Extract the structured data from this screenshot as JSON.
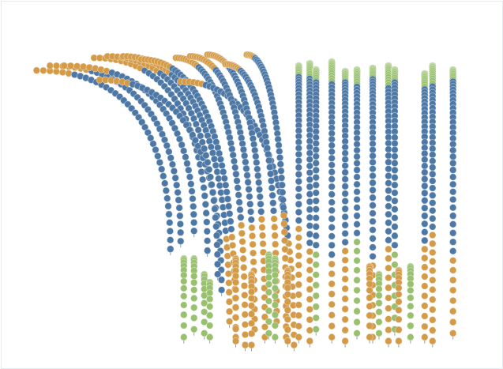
{
  "chart_data": {
    "type": "strands",
    "tick_labels": false,
    "xlim": [
      0,
      637
    ],
    "ylim": [
      0,
      467
    ],
    "strands": [
      {
        "tip": [
          45,
          379
        ],
        "base": [
          215,
          152
        ],
        "colors": [
          "#d39a47",
          "#4d78a6"
        ],
        "counts": [
          6,
          34
        ]
      },
      {
        "tip": [
          62,
          385
        ],
        "base": [
          228,
          162
        ],
        "colors": [
          "#d39a47",
          "#4d78a6"
        ],
        "counts": [
          7,
          34
        ]
      },
      {
        "tip": [
          80,
          385
        ],
        "base": [
          245,
          175
        ],
        "colors": [
          "#d39a47",
          "#4d78a6"
        ],
        "counts": [
          8,
          32
        ]
      },
      {
        "tip": [
          118,
          395
        ],
        "base": [
          262,
          150
        ],
        "colors": [
          "#d39a47",
          "#4d78a6"
        ],
        "counts": [
          10,
          30
        ]
      },
      {
        "tip": [
          125,
          367
        ],
        "base": [
          280,
          100
        ],
        "colors": [
          "#d39a47",
          "#4d78a6"
        ],
        "counts": [
          6,
          36
        ]
      },
      {
        "tip": [
          135,
          397
        ],
        "base": [
          275,
          120
        ],
        "colors": [
          "#d39a47",
          "#4d78a6"
        ],
        "counts": [
          12,
          32
        ]
      },
      {
        "tip": [
          155,
          397
        ],
        "base": [
          290,
          60
        ],
        "colors": [
          "#d39a47",
          "#4d78a6",
          "#d39a47"
        ],
        "counts": [
          14,
          30,
          10
        ]
      },
      {
        "tip": [
          178,
          393
        ],
        "base": [
          298,
          40
        ],
        "colors": [
          "#d39a47",
          "#4d78a6",
          "#d39a47"
        ],
        "counts": [
          10,
          34,
          12
        ]
      },
      {
        "tip": [
          222,
          395
        ],
        "base": [
          310,
          30
        ],
        "colors": [
          "#d39a47",
          "#4d78a6",
          "#d39a47"
        ],
        "counts": [
          10,
          32,
          14
        ]
      },
      {
        "tip": [
          228,
          365
        ],
        "base": [
          372,
          30
        ],
        "colors": [
          "#d39a47",
          "#4d78a6",
          "#d39a47"
        ],
        "counts": [
          6,
          34,
          12
        ]
      },
      {
        "tip": [
          240,
          397
        ],
        "base": [
          322,
          50
        ],
        "colors": [
          "#d39a47",
          "#4d78a6",
          "#d39a47"
        ],
        "counts": [
          12,
          30,
          12
        ]
      },
      {
        "tip": [
          262,
          399
        ],
        "base": [
          335,
          40
        ],
        "colors": [
          "#d39a47",
          "#4d78a6",
          "#d39a47"
        ],
        "counts": [
          12,
          30,
          14
        ]
      },
      {
        "tip": [
          285,
          387
        ],
        "base": [
          350,
          60
        ],
        "colors": [
          "#d39a47",
          "#4d78a6",
          "#d39a47"
        ],
        "counts": [
          8,
          30,
          12
        ]
      },
      {
        "tip": [
          312,
          399
        ],
        "base": [
          362,
          40
        ],
        "colors": [
          "#d39a47",
          "#4d78a6",
          "#d39a47"
        ],
        "counts": [
          6,
          34,
          14
        ]
      },
      {
        "tip": [
          378,
          385
        ],
        "base": [
          378,
          40
        ],
        "colors": [
          "#98c06e",
          "#4d78a6",
          "#d39a47"
        ],
        "counts": [
          10,
          28,
          12
        ]
      },
      {
        "tip": [
          392,
          388
        ],
        "base": [
          392,
          35
        ],
        "colors": [
          "#98c06e",
          "#4d78a6",
          "#d39a47"
        ],
        "counts": [
          12,
          30,
          10
        ]
      },
      {
        "tip": [
          400,
          380
        ],
        "base": [
          400,
          50
        ],
        "colors": [
          "#98c06e",
          "#4d78a6",
          "#98c06e"
        ],
        "counts": [
          10,
          28,
          8
        ]
      },
      {
        "tip": [
          420,
          390
        ],
        "base": [
          420,
          40
        ],
        "colors": [
          "#98c06e",
          "#4d78a6",
          "#d39a47"
        ],
        "counts": [
          14,
          28,
          8
        ]
      },
      {
        "tip": [
          437,
          378
        ],
        "base": [
          437,
          35
        ],
        "colors": [
          "#98c06e",
          "#4d78a6",
          "#d39a47"
        ],
        "counts": [
          10,
          30,
          10
        ]
      },
      {
        "tip": [
          452,
          380
        ],
        "base": [
          452,
          45
        ],
        "colors": [
          "#98c06e",
          "#4d78a6",
          "#98c06e"
        ],
        "counts": [
          12,
          26,
          10
        ]
      },
      {
        "tip": [
          472,
          382
        ],
        "base": [
          472,
          40
        ],
        "colors": [
          "#98c06e",
          "#4d78a6",
          "#d39a47"
        ],
        "counts": [
          10,
          32,
          8
        ]
      },
      {
        "tip": [
          492,
          385
        ],
        "base": [
          492,
          35
        ],
        "colors": [
          "#98c06e",
          "#4d78a6",
          "#d39a47"
        ],
        "counts": [
          14,
          26,
          10
        ]
      },
      {
        "tip": [
          500,
          380
        ],
        "base": [
          500,
          50
        ],
        "colors": [
          "#98c06e",
          "#4d78a6",
          "#98c06e"
        ],
        "counts": [
          10,
          28,
          8
        ]
      },
      {
        "tip": [
          538,
          375
        ],
        "base": [
          538,
          40
        ],
        "colors": [
          "#98c06e",
          "#4d78a6",
          "#d39a47"
        ],
        "counts": [
          12,
          28,
          10
        ]
      },
      {
        "tip": [
          548,
          385
        ],
        "base": [
          548,
          35
        ],
        "colors": [
          "#98c06e",
          "#4d78a6",
          "#d39a47"
        ],
        "counts": [
          14,
          26,
          12
        ]
      },
      {
        "tip": [
          574,
          380
        ],
        "base": [
          574,
          45
        ],
        "colors": [
          "#98c06e",
          "#4d78a6",
          "#d39a47"
        ],
        "counts": [
          10,
          30,
          8
        ]
      },
      {
        "tip": [
          232,
          140
        ],
        "base": [
          232,
          40
        ],
        "colors": [
          "#98c06e"
        ],
        "counts": [
          14
        ]
      },
      {
        "tip": [
          245,
          140
        ],
        "base": [
          245,
          50
        ],
        "colors": [
          "#98c06e"
        ],
        "counts": [
          13
        ]
      },
      {
        "tip": [
          258,
          120
        ],
        "base": [
          258,
          45
        ],
        "colors": [
          "#98c06e"
        ],
        "counts": [
          11
        ]
      },
      {
        "tip": [
          265,
          110
        ],
        "base": [
          265,
          40
        ],
        "colors": [
          "#98c06e"
        ],
        "counts": [
          10
        ]
      },
      {
        "tip": [
          298,
          140
        ],
        "base": [
          298,
          35
        ],
        "colors": [
          "#d39a47"
        ],
        "counts": [
          14
        ]
      },
      {
        "tip": [
          318,
          120
        ],
        "base": [
          318,
          30
        ],
        "colors": [
          "#d39a47"
        ],
        "counts": [
          13
        ]
      },
      {
        "tip": [
          340,
          145
        ],
        "base": [
          340,
          45
        ],
        "colors": [
          "#98c06e"
        ],
        "counts": [
          14
        ]
      },
      {
        "tip": [
          348,
          140
        ],
        "base": [
          348,
          40
        ],
        "colors": [
          "#98c06e"
        ],
        "counts": [
          14
        ]
      },
      {
        "tip": [
          364,
          125
        ],
        "base": [
          364,
          35
        ],
        "colors": [
          "#d39a47"
        ],
        "counts": [
          13
        ]
      },
      {
        "tip": [
          468,
          130
        ],
        "base": [
          468,
          40
        ],
        "colors": [
          "#d39a47"
        ],
        "counts": [
          13
        ]
      },
      {
        "tip": [
          480,
          120
        ],
        "base": [
          480,
          45
        ],
        "colors": [
          "#98c06e"
        ],
        "counts": [
          11
        ]
      },
      {
        "tip": [
          505,
          125
        ],
        "base": [
          505,
          35
        ],
        "colors": [
          "#d39a47"
        ],
        "counts": [
          13
        ]
      },
      {
        "tip": [
          520,
          130
        ],
        "base": [
          520,
          40
        ],
        "colors": [
          "#98c06e"
        ],
        "counts": [
          13
        ]
      }
    ]
  }
}
